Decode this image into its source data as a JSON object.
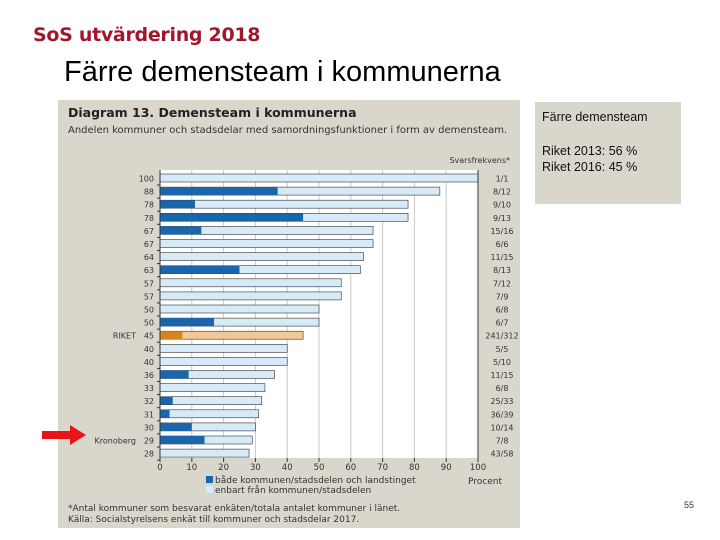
{
  "header": {
    "logo_text": "SoS utvärdering 2018",
    "slide_title": "Färre demensteam i kommunerna"
  },
  "side_box": {
    "heading": "Färre demensteam",
    "line1": "Riket 2013: 56 %",
    "line2": "Riket 2016: 45 %"
  },
  "page_number": "55",
  "colors": {
    "logo": "#a0162a",
    "dark_bar": "#1a66ad",
    "light_bar": "#d6eaf8",
    "riket_dark": "#d9821f",
    "riket_light": "#f2c896",
    "arrow": "#e8141c",
    "panel": "#d9d6cc"
  },
  "chart_data": {
    "type": "bar",
    "orientation": "horizontal",
    "stacked": true,
    "title": "Diagram 13. Demensteam i kommunerna",
    "subtitle": "Andelen kommuner och stadsdelar med samordningsfunktioner i form av demensteam.",
    "right_column_header": "Svarsfrekvens*",
    "xlabel": "Procent",
    "xlim": [
      0,
      100
    ],
    "xticks": [
      0,
      10,
      20,
      30,
      40,
      50,
      60,
      70,
      80,
      90,
      100
    ],
    "grid": true,
    "category_labels": [
      "",
      "",
      "",
      "",
      "",
      "",
      "",
      "",
      "",
      "",
      "",
      "",
      "RIKET",
      "",
      "",
      "",
      "",
      "",
      "",
      "",
      "Kronoberg",
      ""
    ],
    "total_values": [
      100,
      88,
      78,
      78,
      67,
      67,
      64,
      63,
      57,
      57,
      50,
      50,
      45,
      40,
      40,
      36,
      33,
      32,
      31,
      30,
      29,
      28
    ],
    "series": [
      {
        "name": "både kommunen/stadsdelen och landstinget",
        "values": [
          0,
          37,
          11,
          45,
          13,
          0,
          0,
          25,
          0,
          0,
          0,
          17,
          7,
          0,
          0,
          9,
          0,
          4,
          3,
          10,
          14,
          0
        ]
      },
      {
        "name": "enbart från kommunen/stadsdelen",
        "values": [
          100,
          51,
          67,
          33,
          54,
          67,
          64,
          38,
          57,
          57,
          50,
          33,
          38,
          40,
          40,
          27,
          33,
          28,
          28,
          20,
          15,
          28
        ]
      }
    ],
    "response_rates": [
      "1/1",
      "8/12",
      "9/10",
      "9/13",
      "15/16",
      "6/6",
      "11/15",
      "8/13",
      "7/12",
      "7/9",
      "6/8",
      "6/7",
      "241/312",
      "5/5",
      "5/10",
      "11/15",
      "6/8",
      "25/33",
      "36/39",
      "10/14",
      "7/8",
      "43/58"
    ],
    "highlight": {
      "RIKET": "orange",
      "Kronoberg": "red arrow"
    },
    "footnote": "*Antal kommuner som besvarat enkäten/totala antalet kommuner i länet.",
    "source": "Källa: Socialstyrelsens enkät till kommuner och stadsdelar 2017."
  }
}
